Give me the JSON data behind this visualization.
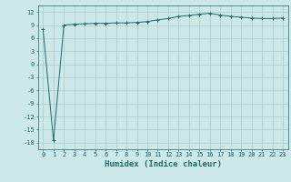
{
  "xlabel": "Humidex (Indice chaleur)",
  "ylabel": "",
  "x_values": [
    0,
    1,
    2,
    3,
    4,
    5,
    6,
    7,
    8,
    9,
    10,
    11,
    12,
    13,
    14,
    15,
    16,
    17,
    18,
    19,
    20,
    21,
    22,
    23
  ],
  "y_values": [
    8.0,
    -17.5,
    9.0,
    9.2,
    9.3,
    9.4,
    9.4,
    9.5,
    9.5,
    9.6,
    9.8,
    10.2,
    10.5,
    11.0,
    11.2,
    11.5,
    11.7,
    11.3,
    11.0,
    10.8,
    10.6,
    10.5,
    10.5,
    10.6
  ],
  "line_color": "#1a6b6b",
  "marker_color": "#1a6b6b",
  "bg_color": "#cce8e8",
  "grid_color": "#aacccc",
  "ylim": [
    -19.5,
    13.5
  ],
  "xlim": [
    -0.5,
    23.5
  ],
  "yticks": [
    -18,
    -15,
    -12,
    -9,
    -6,
    -3,
    0,
    3,
    6,
    9,
    12
  ],
  "xticks": [
    0,
    1,
    2,
    3,
    4,
    5,
    6,
    7,
    8,
    9,
    10,
    11,
    12,
    13,
    14,
    15,
    16,
    17,
    18,
    19,
    20,
    21,
    22,
    23
  ],
  "tick_fontsize": 5.0,
  "label_fontsize": 6.5
}
